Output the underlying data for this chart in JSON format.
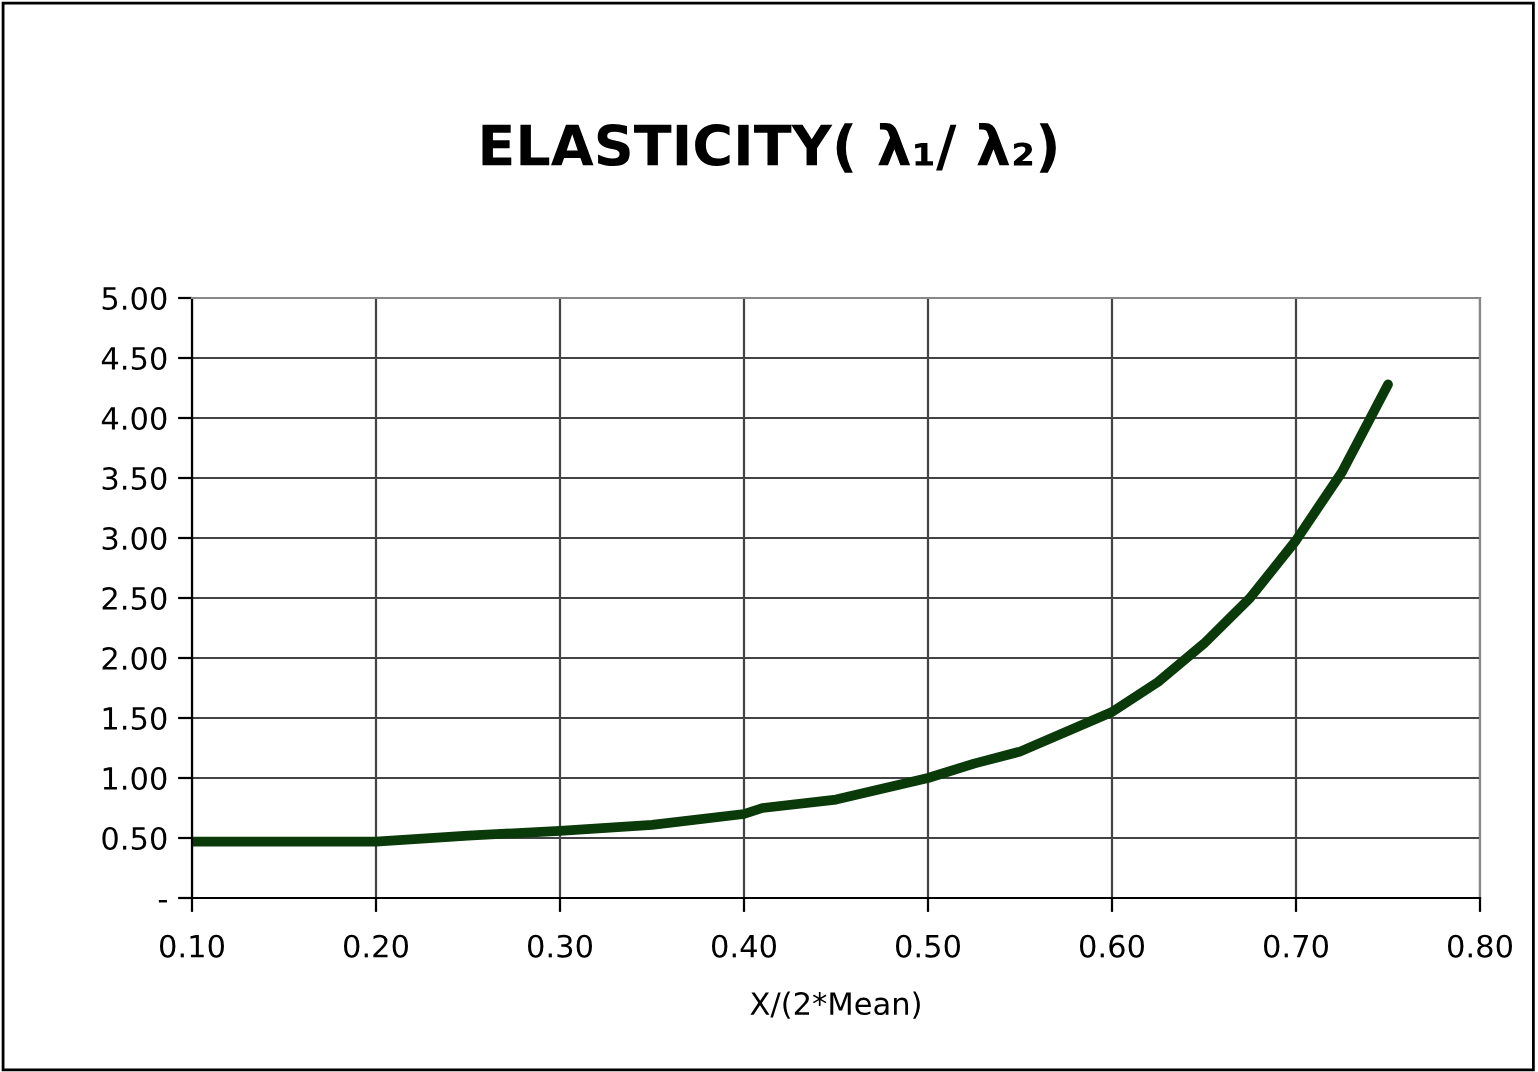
{
  "chart_data": {
    "type": "line",
    "title": "ELASTICITY( λ₁/ λ₂)",
    "xlabel": "X/(2*Mean)",
    "x": [
      0.1,
      0.15,
      0.2,
      0.25,
      0.3,
      0.35,
      0.4,
      0.41,
      0.45,
      0.5,
      0.525,
      0.55,
      0.6,
      0.625,
      0.65,
      0.675,
      0.7,
      0.725,
      0.75
    ],
    "series": [
      {
        "color": "#0a3a0a",
        "values": [
          0.47,
          0.47,
          0.47,
          0.52,
          0.56,
          0.61,
          0.7,
          0.75,
          0.82,
          1.0,
          1.12,
          1.22,
          1.55,
          1.8,
          2.12,
          2.5,
          2.98,
          3.55,
          4.28
        ]
      }
    ],
    "xlim": [
      0.1,
      0.8
    ],
    "xticks": [
      {
        "value": 0.1,
        "label": "0.10"
      },
      {
        "value": 0.2,
        "label": "0.20"
      },
      {
        "value": 0.3,
        "label": "0.30"
      },
      {
        "value": 0.4,
        "label": "0.40"
      },
      {
        "value": 0.5,
        "label": "0.50"
      },
      {
        "value": 0.6,
        "label": "0.60"
      },
      {
        "value": 0.7,
        "label": "0.70"
      },
      {
        "value": 0.8,
        "label": "0.80"
      }
    ],
    "ylim": [
      0,
      5
    ],
    "yticks": [
      {
        "value": 0,
        "label": "-"
      },
      {
        "value": 0.5,
        "label": "0.50"
      },
      {
        "value": 1,
        "label": "1.00"
      },
      {
        "value": 1.5,
        "label": "1.50"
      },
      {
        "value": 2,
        "label": "2.00"
      },
      {
        "value": 2.5,
        "label": "2.50"
      },
      {
        "value": 3,
        "label": "3.00"
      },
      {
        "value": 3.5,
        "label": "3.50"
      },
      {
        "value": 4,
        "label": "4.00"
      },
      {
        "value": 4.5,
        "label": "4.50"
      },
      {
        "value": 5,
        "label": "5.00"
      }
    ],
    "grid": true,
    "marker": "none",
    "line_style": "solid"
  }
}
